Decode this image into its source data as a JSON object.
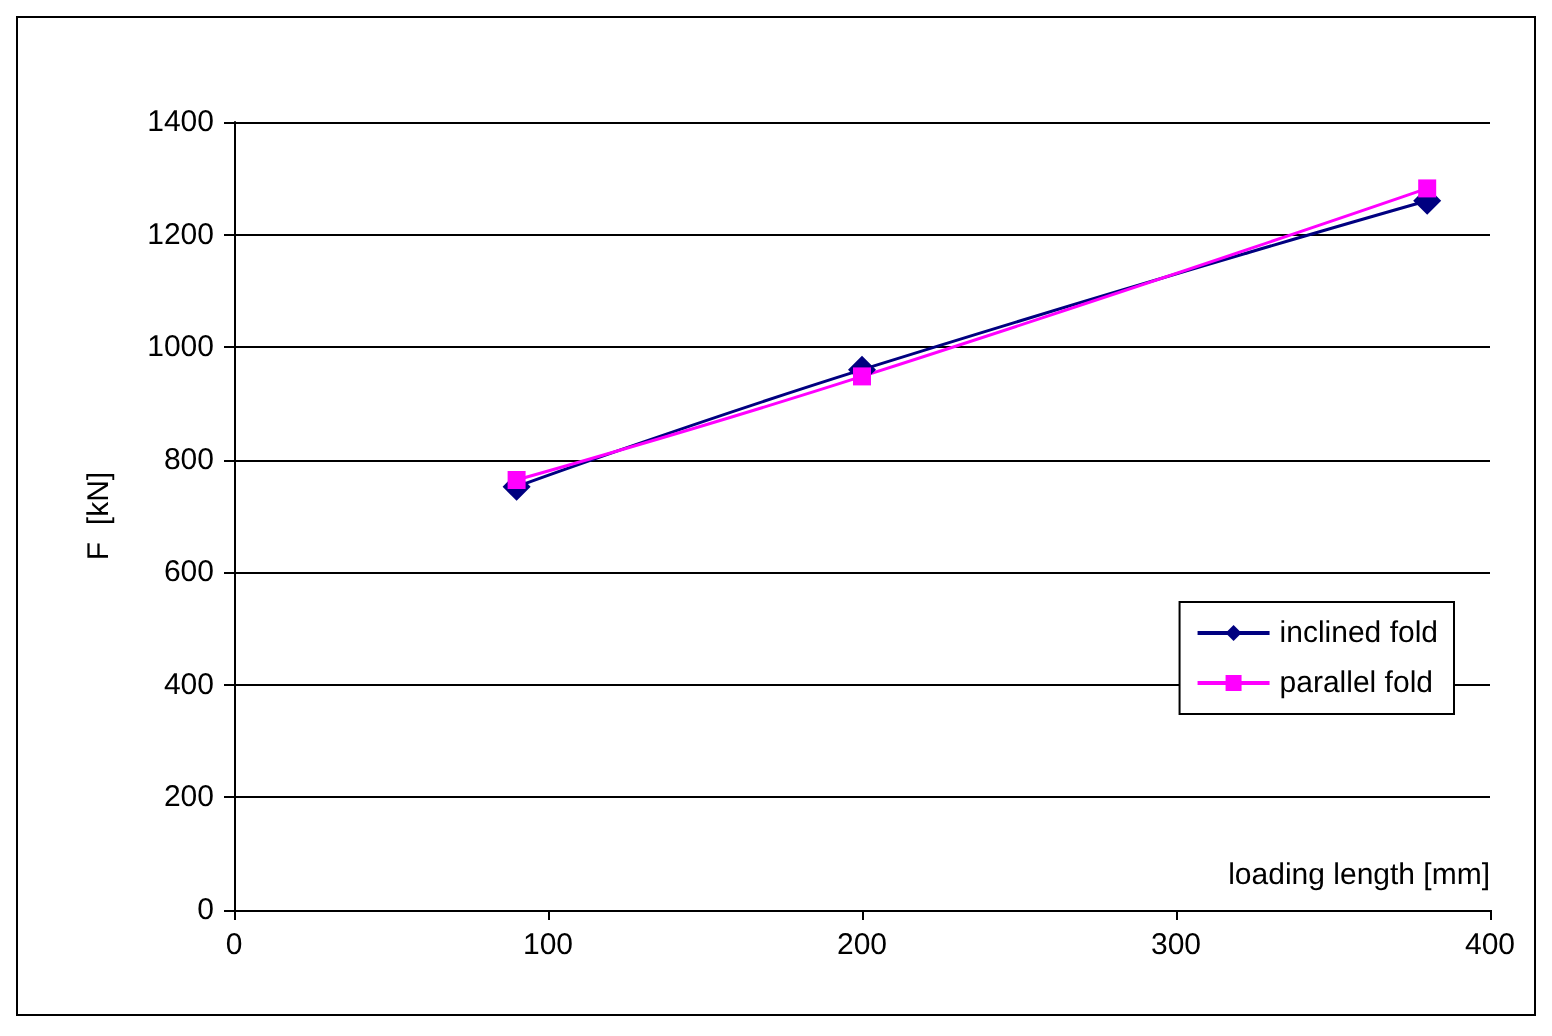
{
  "chart_data": {
    "type": "line",
    "xlabel": "loading length [mm]",
    "ylabel": "F  [kN]",
    "x": [
      90,
      200,
      380
    ],
    "series": [
      {
        "name": "inclined fold",
        "color": "#000080",
        "marker": "diamond",
        "values": [
          752,
          960,
          1260
        ]
      },
      {
        "name": "parallel fold",
        "color": "#ff00ff",
        "marker": "square",
        "values": [
          764,
          948,
          1282
        ]
      }
    ],
    "xlim": [
      0,
      400
    ],
    "xticks": [
      0,
      100,
      200,
      300,
      400
    ],
    "ylim": [
      0,
      1400
    ],
    "yticks": [
      0,
      200,
      400,
      600,
      800,
      1000,
      1200,
      1400
    ],
    "grid": "y",
    "legend": "bottom right"
  }
}
